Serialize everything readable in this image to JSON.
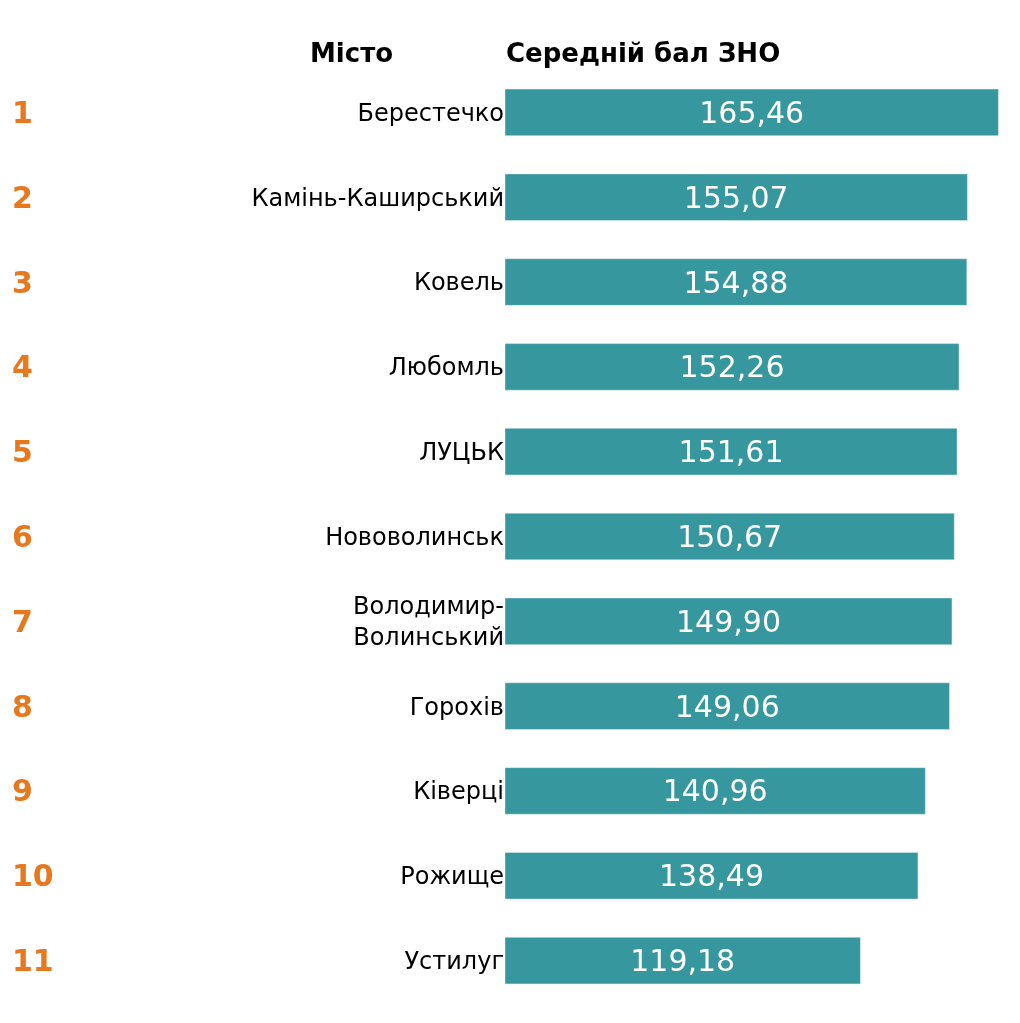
{
  "chart_data": {
    "type": "bar",
    "orientation": "horizontal",
    "xlabel": "Середній бал ЗНО",
    "ylabel": "Місто",
    "categories": [
      "Берестечко",
      "Камінь-Каширський",
      "Ковель",
      "Любомль",
      "ЛУЦЬК",
      "Нововолинськ",
      "Володимир-Волинський",
      "Горохів",
      "Ківерці",
      "Рожище",
      "Устилуг"
    ],
    "values": [
      165.46,
      155.07,
      154.88,
      152.26,
      151.61,
      150.67,
      149.9,
      149.06,
      140.96,
      138.49,
      119.18
    ],
    "value_labels": [
      "165,46",
      "155,07",
      "154,88",
      "152,26",
      "151,61",
      "150,67",
      "149,90",
      "149,06",
      "140,96",
      "138,49",
      "119,18"
    ],
    "color": "#36979f",
    "xlim": [
      0,
      166
    ],
    "annotations": [
      "1",
      "2",
      "3",
      "4",
      "5",
      "6",
      "7",
      "8",
      "9",
      "10",
      "11"
    ],
    "legend": false
  }
}
